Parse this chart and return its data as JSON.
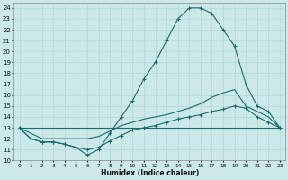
{
  "xlabel": "Humidex (Indice chaleur)",
  "xlim": [
    -0.5,
    23.5
  ],
  "ylim": [
    10,
    24.5
  ],
  "xticks": [
    0,
    1,
    2,
    3,
    4,
    5,
    6,
    7,
    8,
    9,
    10,
    11,
    12,
    13,
    14,
    15,
    16,
    17,
    18,
    19,
    20,
    21,
    22,
    23
  ],
  "yticks": [
    10,
    11,
    12,
    13,
    14,
    15,
    16,
    17,
    18,
    19,
    20,
    21,
    22,
    23,
    24
  ],
  "background_color": "#cce8e8",
  "line_color": "#1a6b6b",
  "line1": {
    "x": [
      0,
      1,
      2,
      3,
      4,
      5,
      6,
      7,
      8,
      9,
      10,
      11,
      12,
      13,
      14,
      15,
      16,
      17,
      18,
      19,
      20,
      21,
      22,
      23
    ],
    "y": [
      13,
      12,
      11.7,
      11.7,
      11.5,
      11.2,
      10.5,
      11,
      12.5,
      14,
      15.5,
      17.5,
      19,
      21,
      23,
      24,
      24,
      23.5,
      22,
      20.5,
      17,
      15,
      14.5,
      13
    ],
    "marker": "+"
  },
  "line2": {
    "x": [
      0,
      1,
      2,
      3,
      4,
      5,
      6,
      7,
      8,
      9,
      10,
      11,
      12,
      13,
      14,
      15,
      16,
      17,
      18,
      19,
      20,
      21,
      22,
      23
    ],
    "y": [
      13,
      12.5,
      12,
      12,
      12,
      12,
      12,
      12.2,
      12.7,
      13.2,
      13.5,
      13.8,
      14,
      14.2,
      14.5,
      14.8,
      15.2,
      15.8,
      16.2,
      16.5,
      15,
      14.5,
      14,
      13
    ],
    "marker": null
  },
  "line3": {
    "x": [
      0,
      23
    ],
    "y": [
      13,
      13
    ],
    "marker": null
  },
  "line4": {
    "x": [
      0,
      1,
      2,
      3,
      4,
      5,
      6,
      7,
      8,
      9,
      10,
      11,
      12,
      13,
      14,
      15,
      16,
      17,
      18,
      19,
      20,
      21,
      22,
      23
    ],
    "y": [
      13,
      12,
      11.7,
      11.7,
      11.5,
      11.2,
      11,
      11.2,
      11.8,
      12.3,
      12.8,
      13,
      13.2,
      13.5,
      13.8,
      14,
      14.2,
      14.5,
      14.7,
      15,
      14.8,
      14,
      13.5,
      13
    ],
    "marker": "+"
  }
}
